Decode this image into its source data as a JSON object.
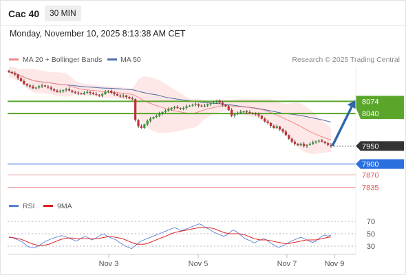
{
  "header": {
    "symbol": "Cac 40",
    "interval": "30 MIN",
    "datetime": "Monday, November 10, 2025 8:13:38 AM CET"
  },
  "legend": {
    "ma20_label": "MA 20 + Bollinger Bands",
    "ma50_label": "MA 50",
    "rsi_label": "RSI",
    "rsi_ma_label": "9MA",
    "credit": "Research © 2025 Trading Central"
  },
  "colors": {
    "ma20": "#f08a8a",
    "bollinger": "#fde3e3",
    "ma50": "#4d6ea8",
    "candle_up": "#2e9e2e",
    "candle_down": "#c03030",
    "resistance": "#5aa62a",
    "support_blue": "#2a6fe0",
    "support_red": "#e05050",
    "current_price_tag": "#333333",
    "arrow": "#2f66a8",
    "rsi_line": "#5b7fd6",
    "rsi_ma": "#e02020"
  },
  "chart_data": [
    {
      "type": "candlestick",
      "title": "",
      "x_labels": [
        "Nov 3",
        "Nov 5",
        "Nov 7",
        "Nov 9"
      ],
      "ylim": [
        7800,
        8170
      ],
      "levels": [
        {
          "value": 8074,
          "label": "8074",
          "kind": "resistance"
        },
        {
          "value": 8040,
          "label": "8040",
          "kind": "resistance"
        },
        {
          "value": 7950,
          "label": "7950",
          "kind": "current"
        },
        {
          "value": 7900,
          "label": "7900",
          "kind": "support"
        },
        {
          "value": 7870,
          "label": "7870",
          "kind": "support"
        },
        {
          "value": 7835,
          "label": "7835",
          "kind": "support"
        }
      ],
      "forecast_arrow": {
        "from": 7950,
        "to": 8074
      },
      "closes": [
        8155,
        8152,
        8148,
        8138,
        8130,
        8122,
        8118,
        8115,
        8110,
        8112,
        8116,
        8118,
        8115,
        8112,
        8108,
        8104,
        8100,
        8102,
        8105,
        8108,
        8104,
        8100,
        8098,
        8096,
        8094,
        8098,
        8100,
        8097,
        8094,
        8092,
        8090,
        8094,
        8100,
        8103,
        8098,
        8094,
        8090,
        8087,
        8090,
        8086,
        8082,
        8080,
        8022,
        8005,
        8000,
        8010,
        8020,
        8026,
        8030,
        8034,
        8040,
        8044,
        8048,
        8052,
        8056,
        8058,
        8055,
        8053,
        8056,
        8060,
        8062,
        8064,
        8066,
        8062,
        8060,
        8062,
        8066,
        8068,
        8070,
        8076,
        8070,
        8064,
        8060,
        8050,
        8034,
        8038,
        8042,
        8045,
        8046,
        8044,
        8042,
        8040,
        8038,
        8034,
        8026,
        8018,
        8014,
        8006,
        8000,
        8004,
        7996,
        7990,
        7980,
        7970,
        7962,
        7956,
        7952,
        7956,
        7950,
        7953,
        7956,
        7960,
        7963,
        7965,
        7962,
        7958,
        7953,
        7950
      ]
    },
    {
      "type": "line",
      "title": "",
      "yticks": [
        70,
        50,
        30
      ],
      "ylim": [
        20,
        80
      ],
      "series": [
        {
          "name": "RSI",
          "values": [
            45,
            44,
            42,
            40,
            38,
            34,
            30,
            28,
            27,
            29,
            31,
            35,
            38,
            40,
            42,
            44,
            45,
            47,
            46,
            44,
            42,
            40,
            38,
            41,
            44,
            46,
            43,
            40,
            42,
            45,
            48,
            50,
            46,
            44,
            42,
            40,
            36,
            33,
            30,
            28,
            26,
            30,
            34,
            38,
            40,
            42,
            44,
            46,
            48,
            50,
            52,
            54,
            56,
            58,
            60,
            58,
            55,
            56,
            58,
            60,
            62,
            64,
            66,
            64,
            60,
            58,
            55,
            52,
            50,
            48,
            46,
            48,
            52,
            56,
            54,
            50,
            46,
            42,
            40,
            38,
            35,
            38,
            40,
            42,
            40,
            36,
            33,
            30,
            28,
            30,
            32,
            35,
            38,
            40,
            42,
            44,
            43,
            40,
            38,
            36,
            38,
            42,
            46,
            48,
            46,
            48
          ]
        },
        {
          "name": "9MA",
          "values": [
            44,
            44,
            43,
            42,
            41,
            39,
            37,
            35,
            33,
            32,
            31,
            31,
            32,
            33,
            35,
            37,
            39,
            41,
            42,
            43,
            43,
            43,
            42,
            42,
            42,
            42,
            42,
            42,
            42,
            42,
            43,
            44,
            45,
            45,
            45,
            44,
            43,
            42,
            40,
            38,
            36,
            34,
            33,
            33,
            33,
            34,
            36,
            38,
            40,
            42,
            44,
            46,
            48,
            50,
            52,
            53,
            54,
            55,
            56,
            57,
            58,
            59,
            60,
            60,
            60,
            60,
            59,
            58,
            56,
            54,
            52,
            51,
            50,
            50,
            50,
            50,
            49,
            48,
            46,
            44,
            42,
            41,
            40,
            40,
            40,
            39,
            38,
            37,
            36,
            35,
            34,
            34,
            35,
            36,
            37,
            38,
            39,
            40,
            40,
            40,
            40,
            41,
            42,
            43,
            44,
            45
          ]
        }
      ]
    }
  ]
}
